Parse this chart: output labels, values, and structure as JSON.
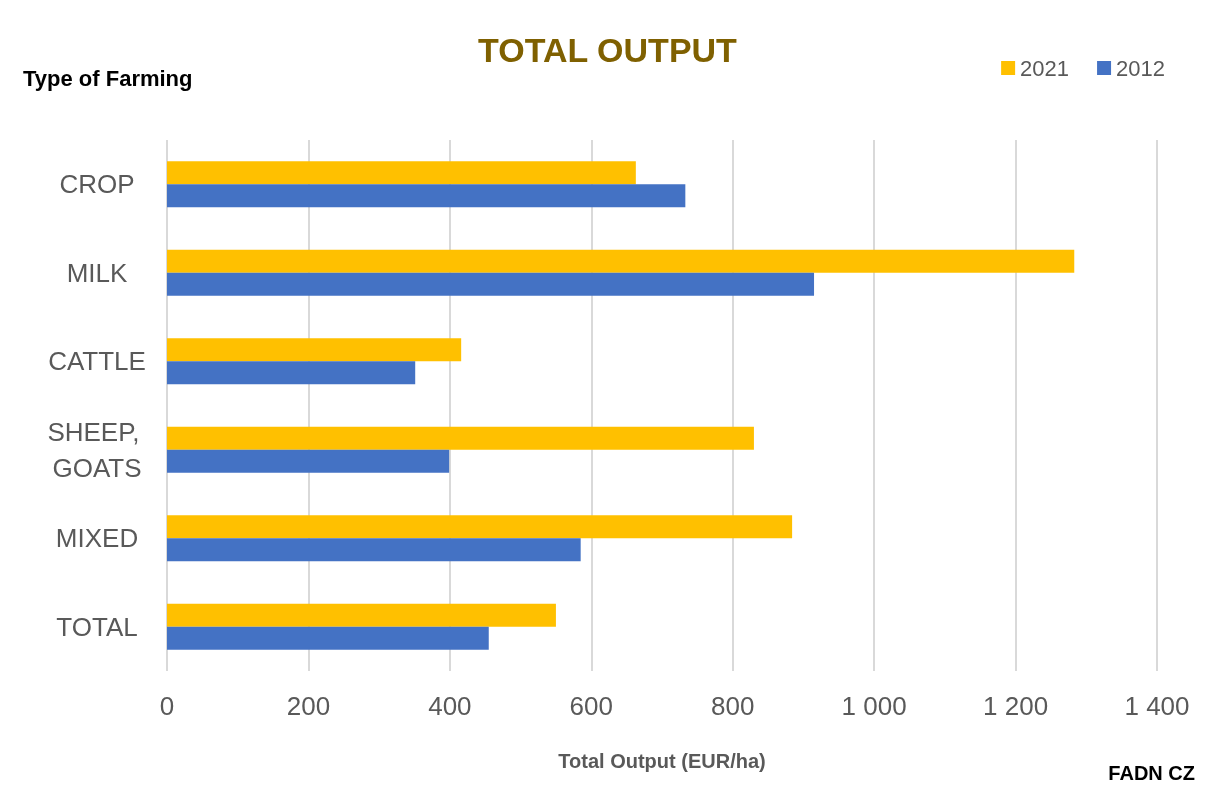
{
  "chart_data": {
    "type": "bar",
    "orientation": "horizontal",
    "title": "TOTAL OUTPUT",
    "ylabel": "Type of Farming",
    "xlabel": "Total Output (EUR/ha)",
    "annotations": [
      "FADN CZ"
    ],
    "categories": [
      "CROP",
      "MILK",
      "CATTLE",
      "SHEEP, GOATS",
      "MIXED",
      "TOTAL"
    ],
    "series": [
      {
        "name": "2021",
        "color": "#ffc000",
        "values": [
          663,
          1283,
          416,
          830,
          884,
          550
        ]
      },
      {
        "name": "2012",
        "color": "#4472c4",
        "values": [
          733,
          915,
          351,
          399,
          585,
          455
        ]
      }
    ],
    "xlim": [
      0,
      1400
    ],
    "xticks": [
      0,
      200,
      400,
      600,
      800,
      {
        "value": 1000,
        "label": "1 000"
      },
      {
        "value": 1200,
        "label": "1 200"
      },
      {
        "value": 1400,
        "label": "1 400"
      }
    ],
    "grid": "x",
    "legend": "top right"
  }
}
